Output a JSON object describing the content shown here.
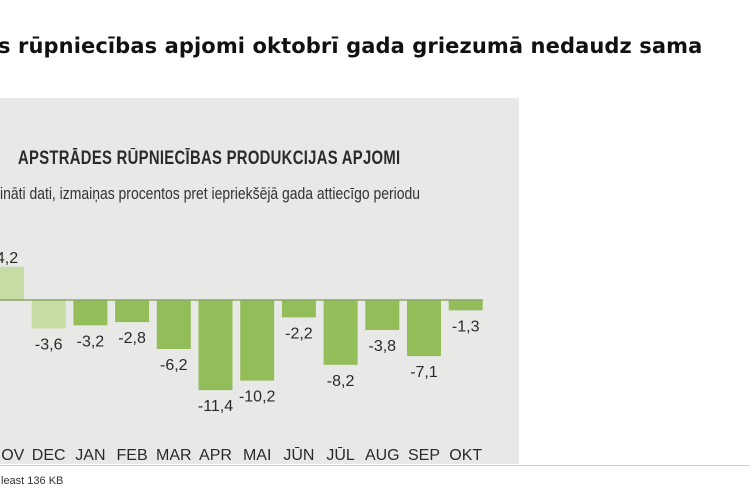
{
  "headline": "s rūpniecības apjomi oktobrī gada griezumā nedaudz sama",
  "status": "least 136 KB",
  "colors": {
    "bar_dark": "#93bd59",
    "bar_light": "#c5dda3",
    "panel": "#e8e8e6",
    "text": "#2a2a2a"
  },
  "chart_data": {
    "type": "bar",
    "title": "APSTRĀDES RŪPNIECĪBAS PRODUKCIJAS APJOMI",
    "subtitle": "ināti dati, izmaiņas procentos pret iepriekšējā gada attiecīgo periodu",
    "categories": [
      "NOV",
      "DEC",
      "JAN",
      "FEB",
      "MAR",
      "APR",
      "MAI",
      "JŪN",
      "JŪL",
      "AUG",
      "SEP",
      "OKT"
    ],
    "values": [
      4.2,
      -3.6,
      -3.2,
      -2.8,
      -6.2,
      -11.4,
      -10.2,
      -2.2,
      -8.2,
      -3.8,
      -7.1,
      -1.3
    ],
    "value_labels": [
      "4,2",
      "-3,6",
      "-3,2",
      "-2,8",
      "-6,2",
      "-11,4",
      "-10,2",
      "-2,2",
      "-8,2",
      "-3,8",
      "-7,1",
      "-1,3"
    ],
    "highlighted": [
      "NOV",
      "DEC"
    ],
    "grid": false
  }
}
